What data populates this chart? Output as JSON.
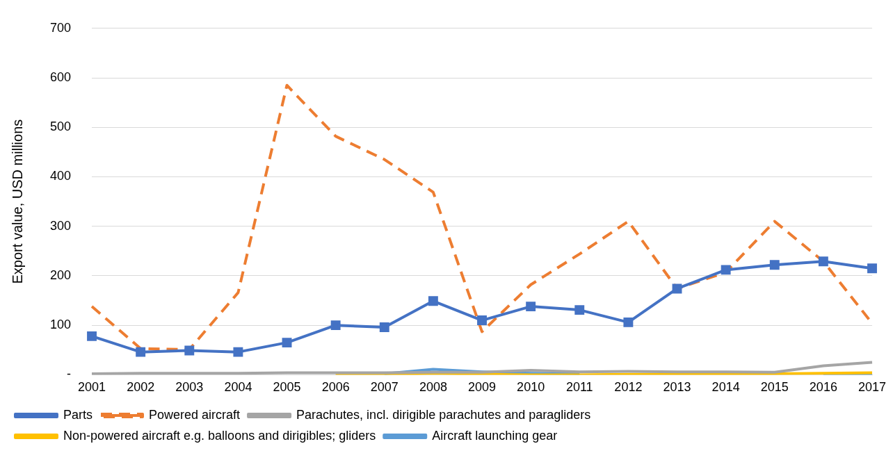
{
  "chart_data": {
    "type": "line",
    "ylabel": "Export value, USD millions",
    "categories": [
      "2001",
      "2002",
      "2003",
      "2004",
      "2005",
      "2006",
      "2007",
      "2008",
      "2009",
      "2010",
      "2011",
      "2012",
      "2013",
      "2014",
      "2015",
      "2016",
      "2017"
    ],
    "series": [
      {
        "name": "Parts",
        "color": "#4472c4",
        "marker": "square",
        "line_style": "solid",
        "values": [
          78,
          46,
          49,
          46,
          65,
          100,
          96,
          149,
          110,
          138,
          131,
          106,
          174,
          212,
          222,
          229,
          215
        ]
      },
      {
        "name": "Powered aircraft",
        "color": "#ed7d31",
        "marker": "none",
        "line_style": "dashed",
        "values": [
          138,
          53,
          51,
          166,
          585,
          482,
          435,
          369,
          87,
          182,
          244,
          310,
          174,
          207,
          310,
          229,
          104
        ]
      },
      {
        "name": "Parachutes, incl. dirigible parachutes and paragliders",
        "color": "#a5a5a5",
        "marker": "none",
        "line_style": "solid",
        "values": [
          2,
          3,
          3,
          3,
          4,
          4,
          4,
          5,
          5,
          9,
          6,
          7,
          6,
          6,
          5,
          18,
          25
        ]
      },
      {
        "name": "Non-powered aircraft e.g. balloons and dirigibles; gliders",
        "color": "#ffc000",
        "marker": "none",
        "line_style": "solid",
        "values": [
          null,
          null,
          null,
          null,
          null,
          0,
          0,
          3,
          1,
          0,
          0,
          1,
          1,
          2,
          2,
          3,
          4
        ]
      },
      {
        "name": "Aircraft launching gear",
        "color": "#5b9bd5",
        "marker": "none",
        "line_style": "solid",
        "values": [
          null,
          null,
          null,
          null,
          null,
          null,
          2,
          11,
          6,
          3,
          2,
          null,
          null,
          null,
          null,
          1,
          1
        ]
      }
    ],
    "ylim": [
      0,
      700
    ],
    "yticks": [
      {
        "value": 0,
        "label": "-"
      },
      100,
      200,
      300,
      400,
      500,
      600,
      700
    ],
    "grid": "y",
    "legend": "bottom"
  }
}
